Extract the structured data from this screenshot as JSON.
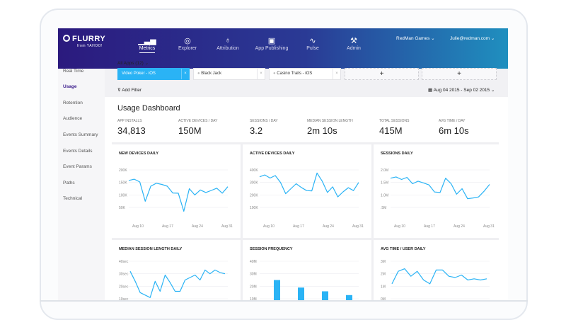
{
  "nav": {
    "logo": "FLURRY",
    "logo_sub": "from YAHOO!",
    "items": [
      {
        "label": "Metrics",
        "icon": "bar-chart-icon"
      },
      {
        "label": "Explorer",
        "icon": "compass-icon"
      },
      {
        "label": "Attribution",
        "icon": "award-icon"
      },
      {
        "label": "App Publishing",
        "icon": "publish-icon"
      },
      {
        "label": "Pulse",
        "icon": "pulse-icon"
      },
      {
        "label": "Admin",
        "icon": "wrench-icon"
      }
    ],
    "active": "Metrics",
    "company": "RedMan Games",
    "user": "Julie@redman.com"
  },
  "sidebar": {
    "items": [
      "Real Time",
      "Usage",
      "Retention",
      "Audience",
      "Events Summary",
      "Events Details",
      "Event Params",
      "Paths",
      "Technical"
    ],
    "active": "Usage"
  },
  "apps": {
    "selector": "All Apps (12)",
    "chips": [
      "Video Poker - iOS",
      "Black Jack",
      "Casino Trails - iOS"
    ],
    "add": "+"
  },
  "filter": {
    "label": "Add Filter",
    "date_range": "Aug 04 2015 - Sep 02 2015"
  },
  "dashboard": {
    "title": "Usage Dashboard",
    "stats": [
      {
        "label": "App Installs",
        "value": "34,813"
      },
      {
        "label": "Active Devices / Day",
        "value": "150M"
      },
      {
        "label": "Sessions / Day",
        "value": "3.2"
      },
      {
        "label": "Median Session Length",
        "value": "2m 10s"
      },
      {
        "label": "Total Sessions",
        "value": "415M"
      },
      {
        "label": "Avg Time / Day",
        "value": "6m 10s"
      }
    ]
  },
  "colors": {
    "accent": "#2ab3f5",
    "active_nav": "#3b1c8c"
  },
  "chart_data": [
    {
      "type": "line",
      "title": "NEW DEVICES DAILY",
      "yticks": [
        "200K",
        "150K",
        "100K",
        "50K"
      ],
      "ylim": [
        50,
        200
      ],
      "xticks": [
        "Aug 10",
        "Aug 17",
        "Aug 24",
        "Aug 31"
      ],
      "values": [
        158,
        163,
        152,
        75,
        135,
        147,
        142,
        135,
        108,
        107,
        35,
        125,
        100,
        120,
        110,
        118,
        127,
        107,
        133
      ]
    },
    {
      "type": "line",
      "title": "ACTIVE DEVICES DAILY",
      "yticks": [
        "400K",
        "300K",
        "200K",
        "100K"
      ],
      "ylim": [
        100,
        400
      ],
      "xticks": [
        "Aug 10",
        "Aug 17",
        "Aug 24",
        "Aug 31"
      ],
      "values": [
        345,
        360,
        335,
        355,
        300,
        210,
        250,
        290,
        260,
        235,
        233,
        375,
        310,
        220,
        265,
        185,
        225,
        258,
        235,
        300
      ]
    },
    {
      "type": "line",
      "title": "SESSIONS DAILY",
      "yticks": [
        "2.0M",
        "1.5M",
        "1.0M",
        ".5M"
      ],
      "ylim": [
        0.5,
        2.0
      ],
      "xticks": [
        "Aug 10",
        "Aug 17",
        "Aug 24",
        "Aug 31"
      ],
      "values": [
        1.67,
        1.72,
        1.62,
        1.7,
        1.45,
        1.55,
        1.48,
        1.4,
        1.12,
        1.1,
        1.67,
        1.45,
        1.03,
        1.25,
        0.85,
        0.88,
        0.92,
        1.15,
        1.42
      ]
    },
    {
      "type": "line",
      "title": "MEDIAN SESSION LENGTH DAILY",
      "yticks": [
        "40sec",
        "30sec",
        "20sec",
        "10sec"
      ],
      "ylim": [
        10,
        40
      ],
      "xticks": [],
      "values": [
        32,
        24,
        15,
        13,
        11,
        24,
        16,
        29,
        23,
        16,
        16,
        25,
        27,
        29,
        25,
        33,
        30,
        33,
        31,
        30
      ]
    },
    {
      "type": "bar",
      "title": "SESSION FREQUENCY",
      "yticks": [
        "40M",
        "30M",
        "20M",
        "10M"
      ],
      "ylim": [
        10,
        40
      ],
      "xticks": [],
      "values": [
        25,
        19,
        16,
        13
      ]
    },
    {
      "type": "line",
      "title": "AVG TIME / USER DAILY",
      "yticks": [
        "3M",
        "2M",
        "1M",
        "0M"
      ],
      "ylim": [
        0,
        3
      ],
      "xticks": [],
      "values": [
        1.2,
        2.2,
        2.4,
        1.8,
        2.2,
        1.5,
        1.2,
        2.3,
        2.3,
        1.8,
        1.7,
        1.9,
        1.5,
        1.6,
        1.5,
        1.6
      ]
    }
  ]
}
